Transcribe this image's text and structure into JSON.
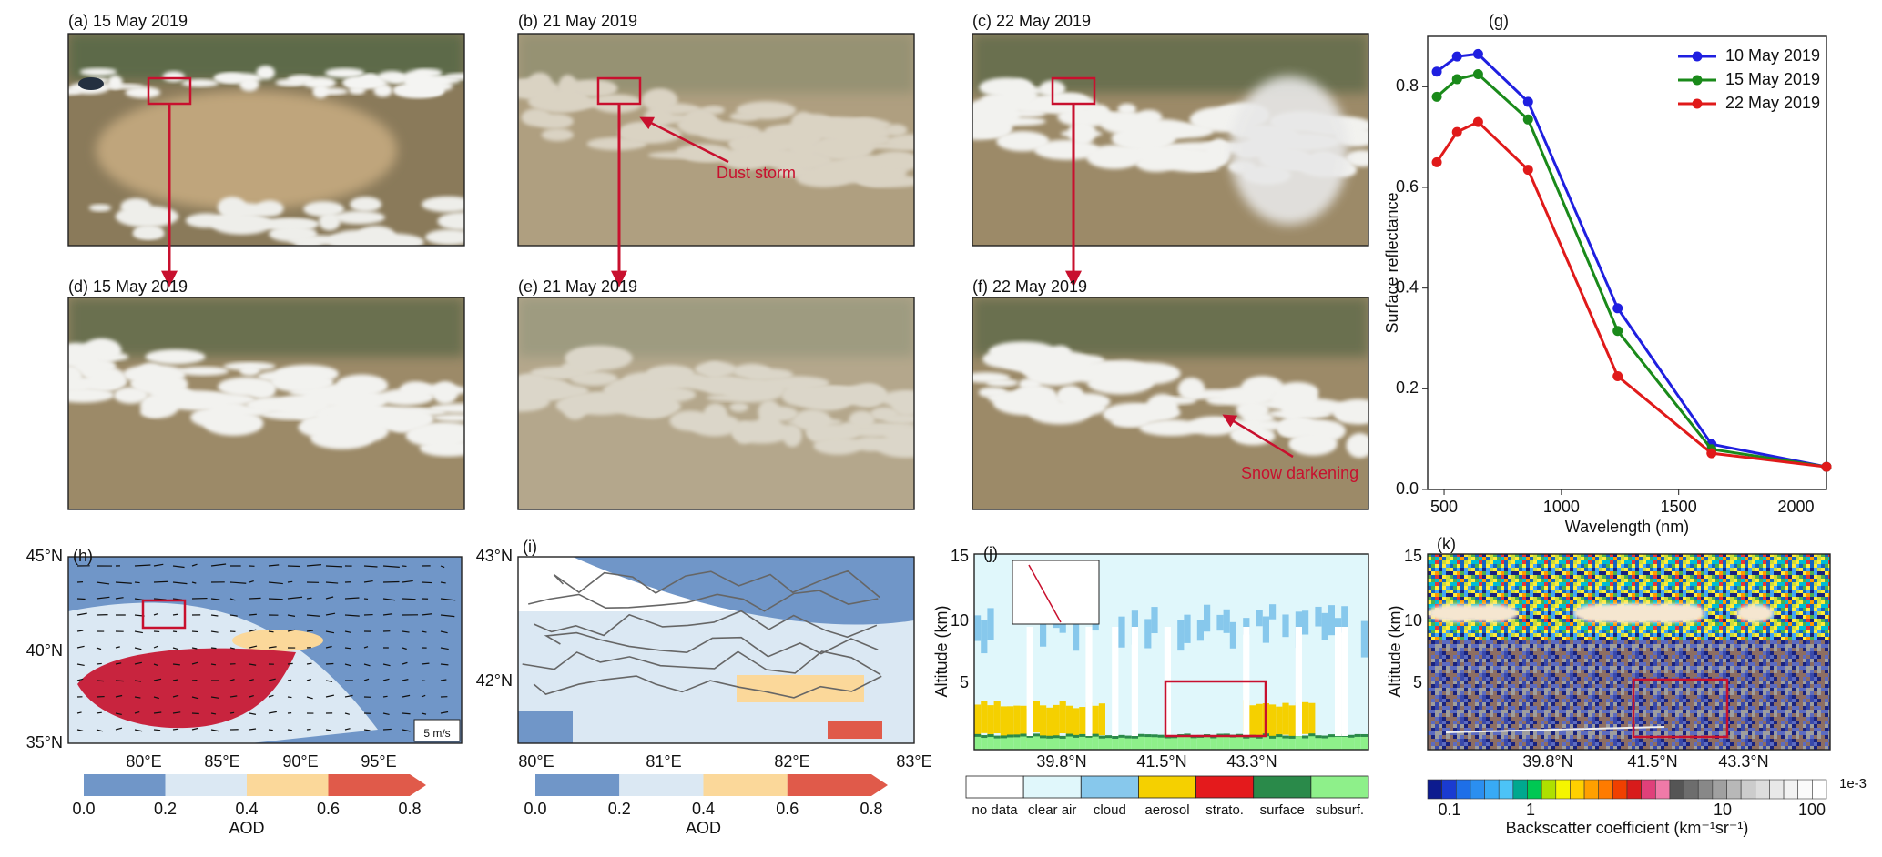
{
  "chart_data": {
    "type": "line",
    "title": "(g)",
    "x": [
      469,
      555,
      645,
      858,
      1240,
      1640,
      2130
    ],
    "xlim": [
      430,
      2130
    ],
    "xticks": [
      500,
      1000,
      1500,
      2000
    ],
    "ylim": [
      0,
      0.9
    ],
    "yticks": [
      {
        "value": 0,
        "label": "0.0"
      },
      0.2,
      0.4,
      0.6,
      0.8
    ],
    "xlabel": "Wavelength (nm)",
    "ylabel": "Surface reflectance",
    "legend": "upper right",
    "series": [
      {
        "name": "10 May 2019",
        "color": "#1f1fe0",
        "values": [
          0.83,
          0.86,
          0.865,
          0.77,
          0.36,
          0.09,
          0.045
        ]
      },
      {
        "name": "15 May 2019",
        "color": "#1a8a1a",
        "values": [
          0.78,
          0.815,
          0.825,
          0.735,
          0.315,
          0.08,
          0.045
        ]
      },
      {
        "name": "22 May 2019",
        "color": "#e01a1a",
        "values": [
          0.65,
          0.71,
          0.73,
          0.635,
          0.225,
          0.072,
          0.045
        ]
      }
    ]
  },
  "panels": {
    "a": "(a) 15 May 2019",
    "b": "(b) 21 May 2019",
    "c": "(c) 22 May 2019",
    "d": "(d) 15 May 2019",
    "e": "(e) 21 May 2019",
    "f": "(f) 22 May 2019"
  },
  "annotations": {
    "dust_storm": "Dust storm",
    "snow_darkening": "Snow darkening"
  },
  "map_h": {
    "label": "(h)",
    "lat_ticks": [
      "45°N",
      "40°N",
      "35°N"
    ],
    "lon_ticks": [
      "80°E",
      "85°E",
      "90°E",
      "95°E"
    ],
    "wind_scale": "5 m/s"
  },
  "map_i": {
    "label": "(i)",
    "lat_ticks": [
      "43°N",
      "42°N"
    ],
    "lon_ticks": [
      "80°E",
      "81°E",
      "82°E",
      "83°E"
    ]
  },
  "aod_colorbar": {
    "ticks": [
      "0.0",
      "0.2",
      "0.4",
      "0.6",
      "0.8"
    ],
    "label": "AOD"
  },
  "calipso_j": {
    "label": "(j)",
    "alt_ticks": [
      "15",
      "10",
      "5"
    ],
    "ylabel": "Altitude (km)",
    "lat_ticks": [
      "39.8°N",
      "41.5°N",
      "43.3°N"
    ],
    "classes": [
      "no data",
      "clear air",
      "cloud",
      "aerosol",
      "strato.",
      "surface",
      "subsurf."
    ]
  },
  "calipso_k": {
    "label": "(k)",
    "alt_ticks": [
      "15",
      "10",
      "5"
    ],
    "ylabel": "Altitude (km)",
    "lat_ticks": [
      "39.8°N",
      "41.5°N",
      "43.3°N"
    ],
    "colorbar_ticks": [
      "0.1",
      "1",
      "10",
      "100"
    ],
    "colorbar_scale": "1e-3",
    "colorbar_label": "Backscatter coefficient (km⁻¹sr⁻¹)"
  }
}
